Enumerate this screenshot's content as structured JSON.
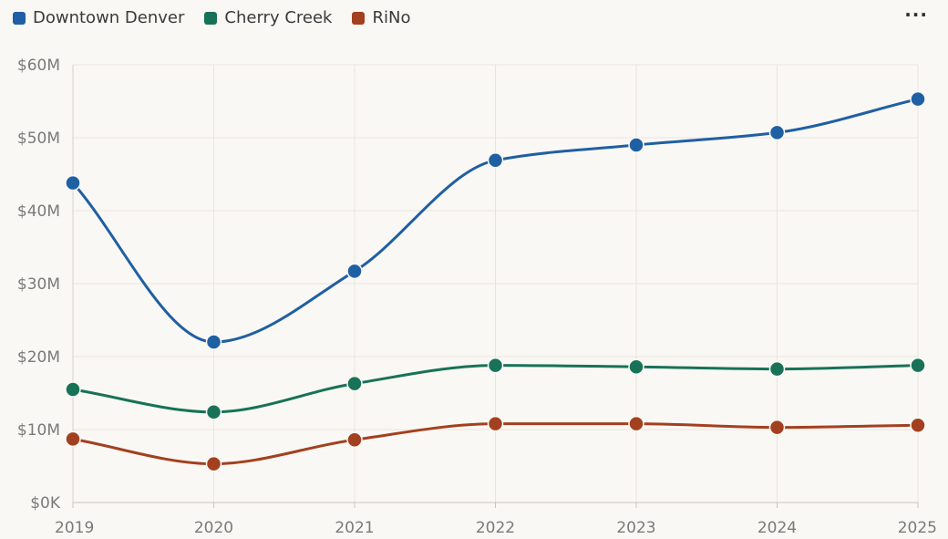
{
  "menu": {
    "label": "···"
  },
  "chart_data": {
    "type": "line",
    "title": "",
    "xlabel": "",
    "ylabel": "",
    "x": [
      "2019",
      "2020",
      "2021",
      "2022",
      "2023",
      "2024",
      "2025"
    ],
    "ylim": [
      0,
      60
    ],
    "y_ticks": [
      {
        "value": 0,
        "label": "$0K"
      },
      {
        "value": 10,
        "label": "$10M"
      },
      {
        "value": 20,
        "label": "$20M"
      },
      {
        "value": 30,
        "label": "$30M"
      },
      {
        "value": 40,
        "label": "$40M"
      },
      {
        "value": 50,
        "label": "$50M"
      },
      {
        "value": 60,
        "label": "$60M"
      }
    ],
    "grid": true,
    "legend_position": "top-left",
    "series": [
      {
        "name": "Downtown Denver",
        "color": "#1f5fa3",
        "values": [
          43.8,
          22.0,
          31.7,
          46.9,
          49.0,
          50.7,
          55.3
        ]
      },
      {
        "name": "Cherry Creek",
        "color": "#177258",
        "values": [
          15.5,
          12.4,
          16.3,
          18.8,
          18.6,
          18.3,
          18.8
        ]
      },
      {
        "name": "RiNo",
        "color": "#a3401f",
        "values": [
          8.7,
          5.3,
          8.6,
          10.8,
          10.8,
          10.3,
          10.6
        ]
      }
    ]
  }
}
